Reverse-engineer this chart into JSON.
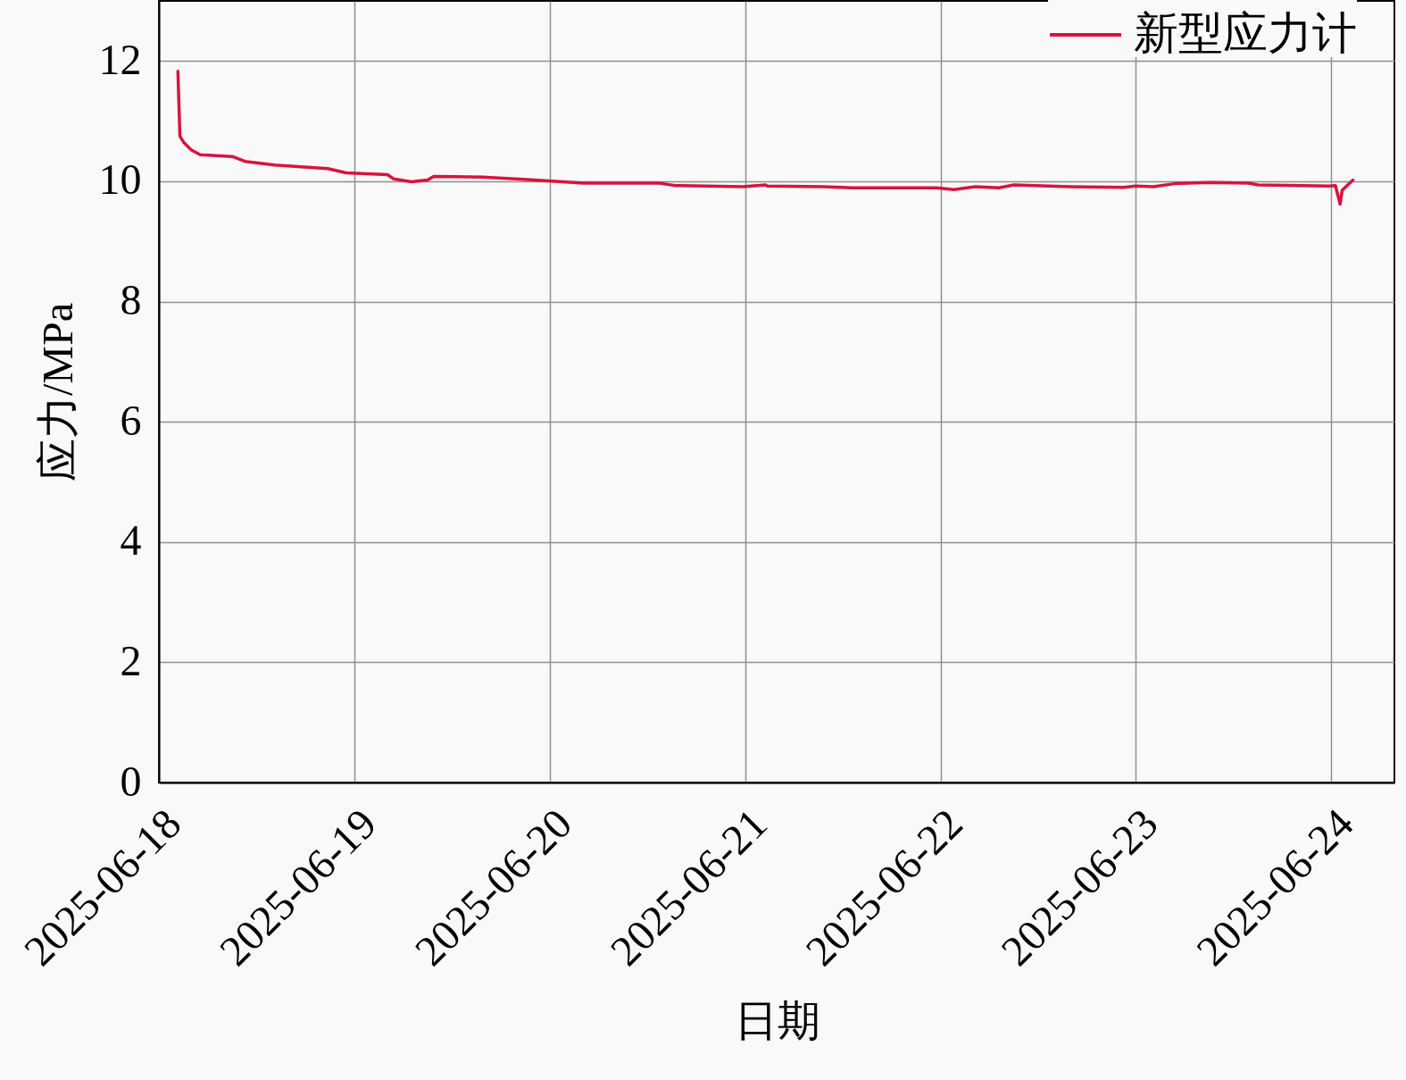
{
  "chart_data": {
    "type": "line",
    "xlabel": "日期",
    "ylabel": "应力/MPa",
    "x": [
      "2025-06-18T02:20",
      "2025-06-18T02:35",
      "2025-06-18T03:05",
      "2025-06-18T04:00",
      "2025-06-18T05:05",
      "2025-06-18T09:05",
      "2025-06-18T10:35",
      "2025-06-18T14:15",
      "2025-06-18T20:45",
      "2025-06-18T23:00",
      "2025-06-19T04:05",
      "2025-06-19T04:50",
      "2025-06-19T07:00",
      "2025-06-19T09:00",
      "2025-06-19T09:45",
      "2025-06-19T15:45",
      "2025-06-19T21:15",
      "2025-06-20T04:10",
      "2025-06-20T13:30",
      "2025-06-20T15:20",
      "2025-06-20T23:45",
      "2025-06-21T02:30",
      "2025-06-21T02:45",
      "2025-06-21T09:35",
      "2025-06-21T13:15",
      "2025-06-21T23:30",
      "2025-06-22T01:40",
      "2025-06-22T04:15",
      "2025-06-22T07:10",
      "2025-06-22T09:00",
      "2025-06-22T15:55",
      "2025-06-22T22:30",
      "2025-06-23T00:00",
      "2025-06-23T02:10",
      "2025-06-23T04:45",
      "2025-06-23T09:05",
      "2025-06-23T13:50",
      "2025-06-23T15:00",
      "2025-06-23T23:45",
      "2025-06-24T00:30",
      "2025-06-24T01:05",
      "2025-06-24T01:20",
      "2025-06-24T02:40"
    ],
    "series": [
      {
        "name": "新型应力计",
        "color": "#d7143f",
        "values": [
          11.83,
          10.75,
          10.64,
          10.52,
          10.44,
          10.41,
          10.33,
          10.27,
          10.21,
          10.14,
          10.11,
          10.04,
          9.99,
          10.02,
          10.08,
          10.07,
          10.03,
          9.97,
          9.97,
          9.93,
          9.91,
          9.94,
          9.92,
          9.91,
          9.89,
          9.89,
          9.86,
          9.91,
          9.89,
          9.94,
          9.91,
          9.9,
          9.92,
          9.91,
          9.96,
          9.98,
          9.97,
          9.94,
          9.92,
          9.93,
          9.62,
          9.85,
          10.02
        ]
      }
    ],
    "xlim": [
      "2025-06-18",
      "2025-06-24T07:45"
    ],
    "ylim": [
      0,
      13
    ],
    "xticks": [
      "2025-06-18",
      "2025-06-19",
      "2025-06-20",
      "2025-06-21",
      "2025-06-22",
      "2025-06-23",
      "2025-06-24"
    ],
    "yticks": [
      0,
      2,
      4,
      6,
      8,
      10,
      12
    ],
    "grid": true,
    "legend": "top right",
    "line_style": "solid"
  }
}
